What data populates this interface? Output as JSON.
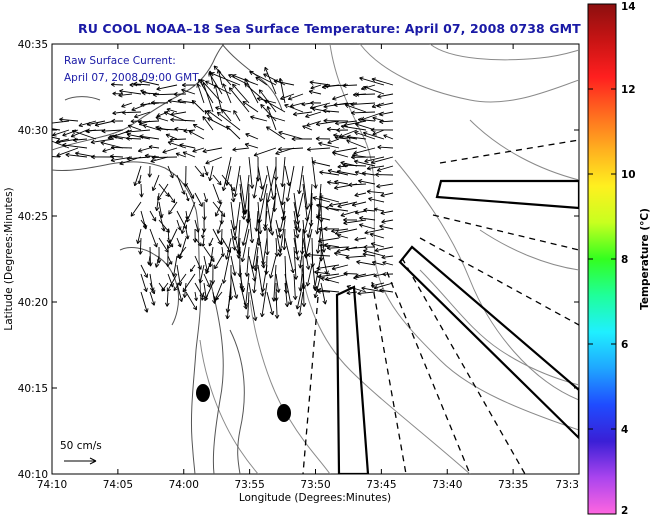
{
  "title": "RU COOL  NOAA–18  Sea Surface Temperature:  April 07, 2008 0738 GMT",
  "legend": {
    "line1": "Raw Surface Current:",
    "line2": "April 07, 2008 09:00 GMT",
    "scale_label": "50 cm/s"
  },
  "axes": {
    "xlabel": "Longitude (Degrees:Minutes)",
    "ylabel": "Latitude (Degrees:Minutes)",
    "x_ticks": [
      "74:10",
      "74:05",
      "74:00",
      "73:55",
      "73:50",
      "73:45",
      "73:40",
      "73:35",
      "73:3"
    ],
    "y_ticks": [
      "40:35",
      "40:30",
      "40:25",
      "40:20",
      "40:15",
      "40:10"
    ]
  },
  "colorbar": {
    "label": "Temperature (°C)",
    "ticks": [
      "14",
      "12",
      "10",
      "8",
      "6",
      "4",
      "2"
    ],
    "min": 2,
    "max": 14,
    "colors": [
      "#ff66e0",
      "#aa44ee",
      "#3a1fd6",
      "#1f4cff",
      "#1fa6ff",
      "#1ff0ff",
      "#1fff9a",
      "#33ff1f",
      "#c8ff1f",
      "#fff01f",
      "#ffb01f",
      "#ff6a1f",
      "#ff1f1f",
      "#c81414",
      "#8c0f0f"
    ]
  },
  "colors": {
    "title": "#1a1aa6",
    "land_outline": "#555555",
    "bathymetry": "#8a8a8a",
    "vectors": "#000000"
  }
}
